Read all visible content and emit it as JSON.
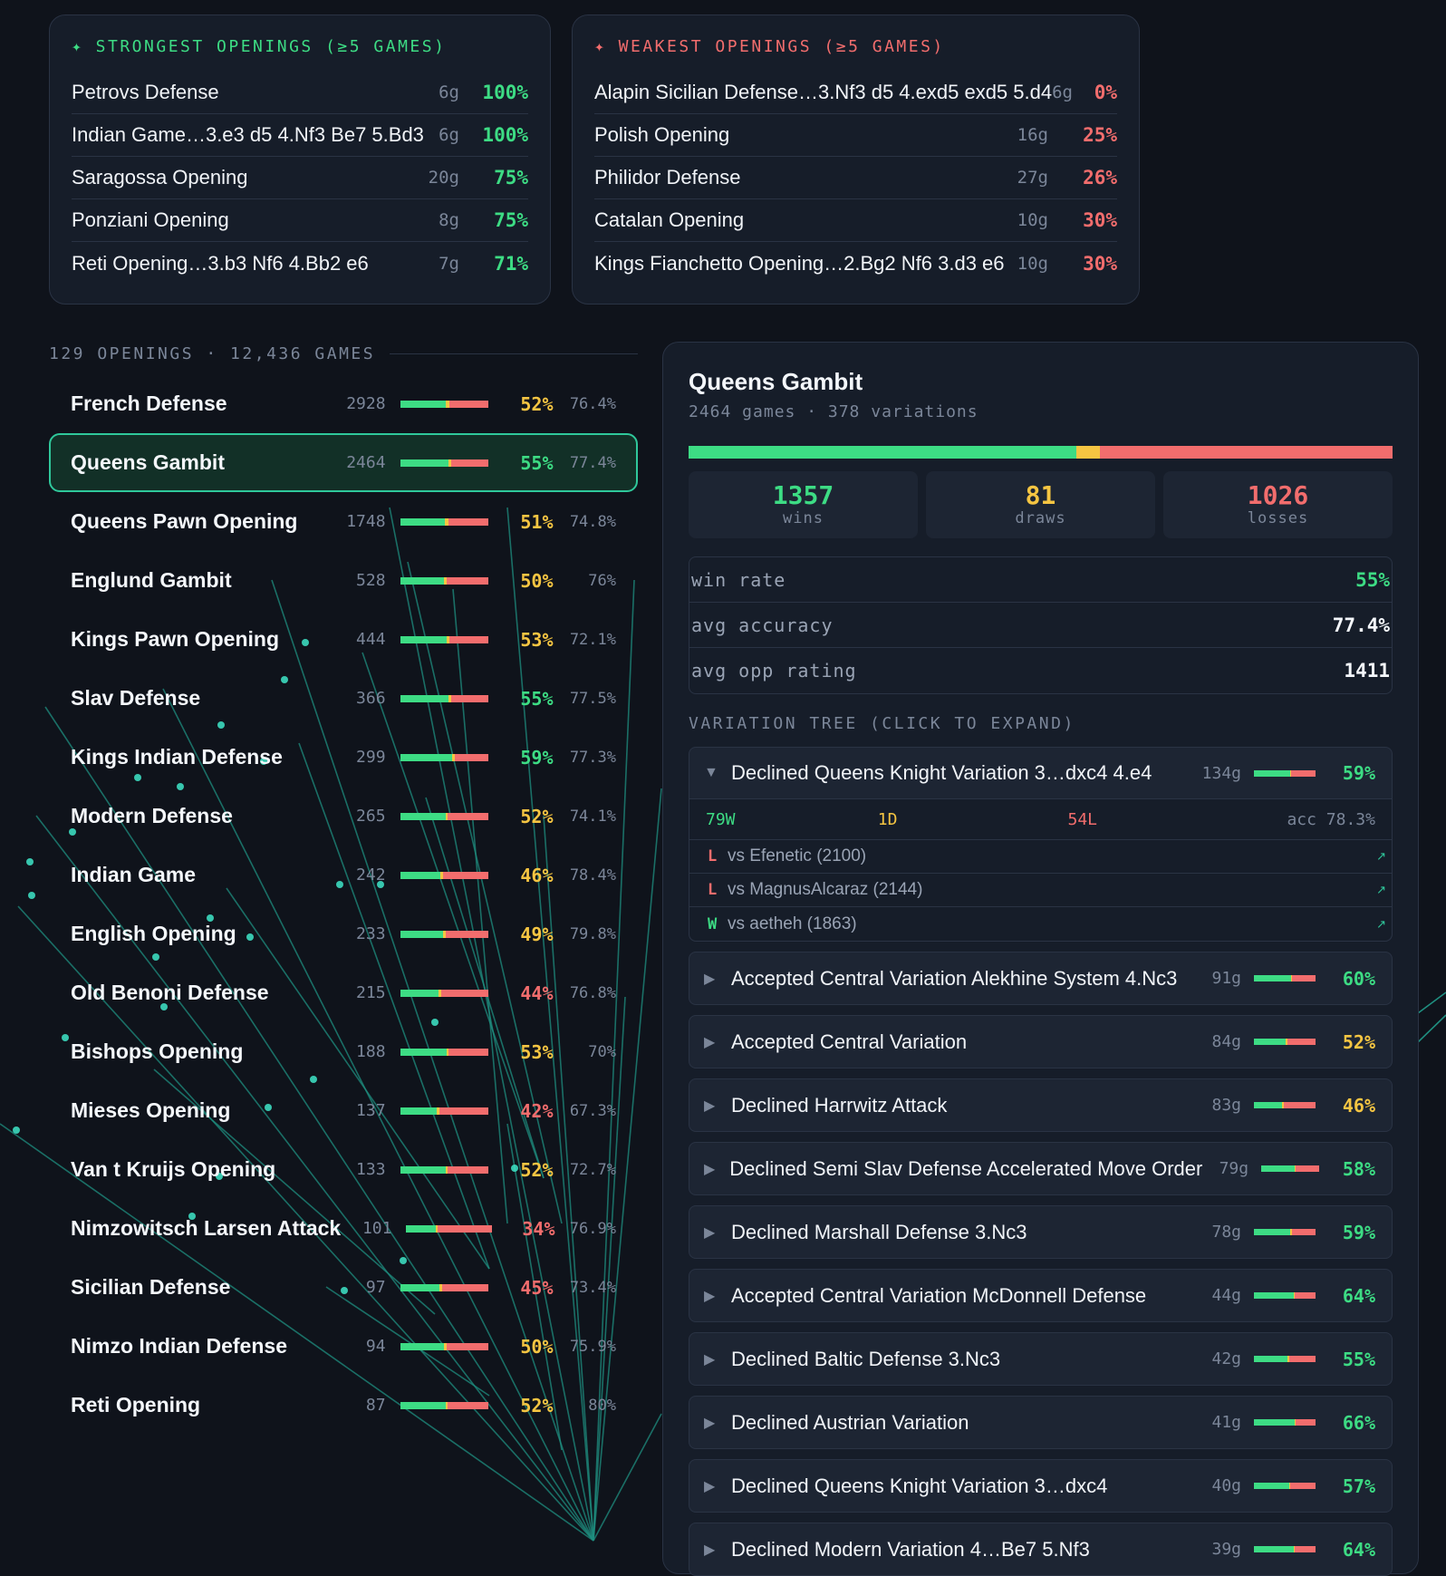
{
  "strongest": {
    "title": "✦ STRONGEST OPENINGS (≥5 GAMES)",
    "rows": [
      {
        "name": "Petrovs Defense",
        "games": "6g",
        "pct": "100%"
      },
      {
        "name": "Indian Game…3.e3 d5 4.Nf3 Be7 5.Bd3",
        "games": "6g",
        "pct": "100%"
      },
      {
        "name": "Saragossa Opening",
        "games": "20g",
        "pct": "75%"
      },
      {
        "name": "Ponziani Opening",
        "games": "8g",
        "pct": "75%"
      },
      {
        "name": "Reti Opening…3.b3 Nf6 4.Bb2 e6",
        "games": "7g",
        "pct": "71%"
      }
    ]
  },
  "weakest": {
    "title": "✦ WEAKEST OPENINGS (≥5 GAMES)",
    "rows": [
      {
        "name": "Alapin Sicilian Defense…3.Nf3 d5 4.exd5 exd5 5.d4",
        "games": "6g",
        "pct": "0%"
      },
      {
        "name": "Polish Opening",
        "games": "16g",
        "pct": "25%"
      },
      {
        "name": "Philidor Defense",
        "games": "27g",
        "pct": "26%"
      },
      {
        "name": "Catalan Opening",
        "games": "10g",
        "pct": "30%"
      },
      {
        "name": "Kings Fianchetto Opening…2.Bg2 Nf6 3.d3 e6",
        "games": "10g",
        "pct": "30%"
      }
    ]
  },
  "summary": "129 OPENINGS · 12,436 GAMES",
  "openings": [
    {
      "name": "French Defense",
      "count": "2928",
      "pct": "52%",
      "acc": "76.4%",
      "win": 0.52,
      "draw": 0.04,
      "selected": false
    },
    {
      "name": "Queens Gambit",
      "count": "2464",
      "pct": "55%",
      "acc": "77.4%",
      "win": 0.55,
      "draw": 0.03,
      "selected": true
    },
    {
      "name": "Queens Pawn Opening",
      "count": "1748",
      "pct": "51%",
      "acc": "74.8%",
      "win": 0.51,
      "draw": 0.04,
      "selected": false
    },
    {
      "name": "Englund Gambit",
      "count": "528",
      "pct": "50%",
      "acc": "76%",
      "win": 0.5,
      "draw": 0.03,
      "selected": false
    },
    {
      "name": "Kings Pawn Opening",
      "count": "444",
      "pct": "53%",
      "acc": "72.1%",
      "win": 0.53,
      "draw": 0.03,
      "selected": false
    },
    {
      "name": "Slav Defense",
      "count": "366",
      "pct": "55%",
      "acc": "77.5%",
      "win": 0.55,
      "draw": 0.03,
      "selected": false
    },
    {
      "name": "Kings Indian Defense",
      "count": "299",
      "pct": "59%",
      "acc": "77.3%",
      "win": 0.59,
      "draw": 0.03,
      "selected": false
    },
    {
      "name": "Modern Defense",
      "count": "265",
      "pct": "52%",
      "acc": "74.1%",
      "win": 0.52,
      "draw": 0.02,
      "selected": false
    },
    {
      "name": "Indian Game",
      "count": "242",
      "pct": "46%",
      "acc": "78.4%",
      "win": 0.46,
      "draw": 0.03,
      "selected": false
    },
    {
      "name": "English Opening",
      "count": "233",
      "pct": "49%",
      "acc": "79.8%",
      "win": 0.49,
      "draw": 0.03,
      "selected": false
    },
    {
      "name": "Old Benoni Defense",
      "count": "215",
      "pct": "44%",
      "acc": "76.8%",
      "win": 0.44,
      "draw": 0.03,
      "selected": false
    },
    {
      "name": "Bishops Opening",
      "count": "188",
      "pct": "53%",
      "acc": "70%",
      "win": 0.53,
      "draw": 0.02,
      "selected": false
    },
    {
      "name": "Mieses Opening",
      "count": "137",
      "pct": "42%",
      "acc": "67.3%",
      "win": 0.42,
      "draw": 0.03,
      "selected": false
    },
    {
      "name": "Van t Kruijs Opening",
      "count": "133",
      "pct": "52%",
      "acc": "72.7%",
      "win": 0.52,
      "draw": 0.02,
      "selected": false
    },
    {
      "name": "Nimzowitsch Larsen Attack",
      "count": "101",
      "pct": "34%",
      "acc": "76.9%",
      "win": 0.34,
      "draw": 0.02,
      "selected": false
    },
    {
      "name": "Sicilian Defense",
      "count": "97",
      "pct": "45%",
      "acc": "73.4%",
      "win": 0.45,
      "draw": 0.03,
      "selected": false
    },
    {
      "name": "Nimzo Indian Defense",
      "count": "94",
      "pct": "50%",
      "acc": "75.9%",
      "win": 0.5,
      "draw": 0.03,
      "selected": false
    },
    {
      "name": "Reti Opening",
      "count": "87",
      "pct": "52%",
      "acc": "80%",
      "win": 0.52,
      "draw": 0.02,
      "selected": false
    }
  ],
  "detail": {
    "title": "Queens Gambit",
    "sub": "2464 games · 378 variations",
    "wins": "1357",
    "draws": "81",
    "losses": "1026",
    "wins_label": "wins",
    "draws_label": "draws",
    "losses_label": "losses",
    "win_frac": 0.551,
    "draw_frac": 0.033,
    "metrics": [
      {
        "label": "win rate",
        "value": "55%",
        "color": "#3ddc84"
      },
      {
        "label": "avg accuracy",
        "value": "77.4%",
        "color": "#f4f7fb"
      },
      {
        "label": "avg opp rating",
        "value": "1411",
        "color": "#f4f7fb"
      }
    ],
    "tree_title": "VARIATION TREE (CLICK TO EXPAND)",
    "expanded": {
      "arrow": "▼",
      "name": "Declined Queens Knight Variation 3…dxc4 4.e4",
      "count": "134g",
      "pct": "59%",
      "win": 0.59,
      "draw": 0.01,
      "w": "79W",
      "d": "1D",
      "l": "54L",
      "acc": "acc 78.3%",
      "games": [
        {
          "res": "L",
          "opp": "vs Efenetic (2100)",
          "link": "↗"
        },
        {
          "res": "L",
          "opp": "vs MagnusAlcaraz (2144)",
          "link": "↗"
        },
        {
          "res": "W",
          "opp": "vs aetheh (1863)",
          "link": "↗"
        }
      ]
    },
    "variations": [
      {
        "name": "Accepted Central Variation Alekhine System 4.Nc3",
        "count": "91g",
        "pct": "60%",
        "win": 0.6,
        "draw": 0.02
      },
      {
        "name": "Accepted Central Variation",
        "count": "84g",
        "pct": "52%",
        "win": 0.52,
        "draw": 0.03
      },
      {
        "name": "Declined Harrwitz Attack",
        "count": "83g",
        "pct": "46%",
        "win": 0.46,
        "draw": 0.03
      },
      {
        "name": "Declined Semi Slav Defense Accelerated Move Order",
        "count": "79g",
        "pct": "58%",
        "win": 0.58,
        "draw": 0.02
      },
      {
        "name": "Declined Marshall Defense 3.Nc3",
        "count": "78g",
        "pct": "59%",
        "win": 0.59,
        "draw": 0.03
      },
      {
        "name": "Accepted Central Variation McDonnell Defense",
        "count": "44g",
        "pct": "64%",
        "win": 0.64,
        "draw": 0.02
      },
      {
        "name": "Declined Baltic Defense 3.Nc3",
        "count": "42g",
        "pct": "55%",
        "win": 0.55,
        "draw": 0.02
      },
      {
        "name": "Declined Austrian Variation",
        "count": "41g",
        "pct": "66%",
        "win": 0.66,
        "draw": 0.02
      },
      {
        "name": "Declined Queens Knight Variation 3…dxc4",
        "count": "40g",
        "pct": "57%",
        "win": 0.57,
        "draw": 0.02
      },
      {
        "name": "Declined Modern Variation 4…Be7 5.Nf3",
        "count": "39g",
        "pct": "64%",
        "win": 0.64,
        "draw": 0.02
      }
    ]
  },
  "colors": {
    "win": "#3ddc84",
    "draw": "#f5c542",
    "loss": "#f26d6d",
    "accent": "#2fc89b"
  }
}
